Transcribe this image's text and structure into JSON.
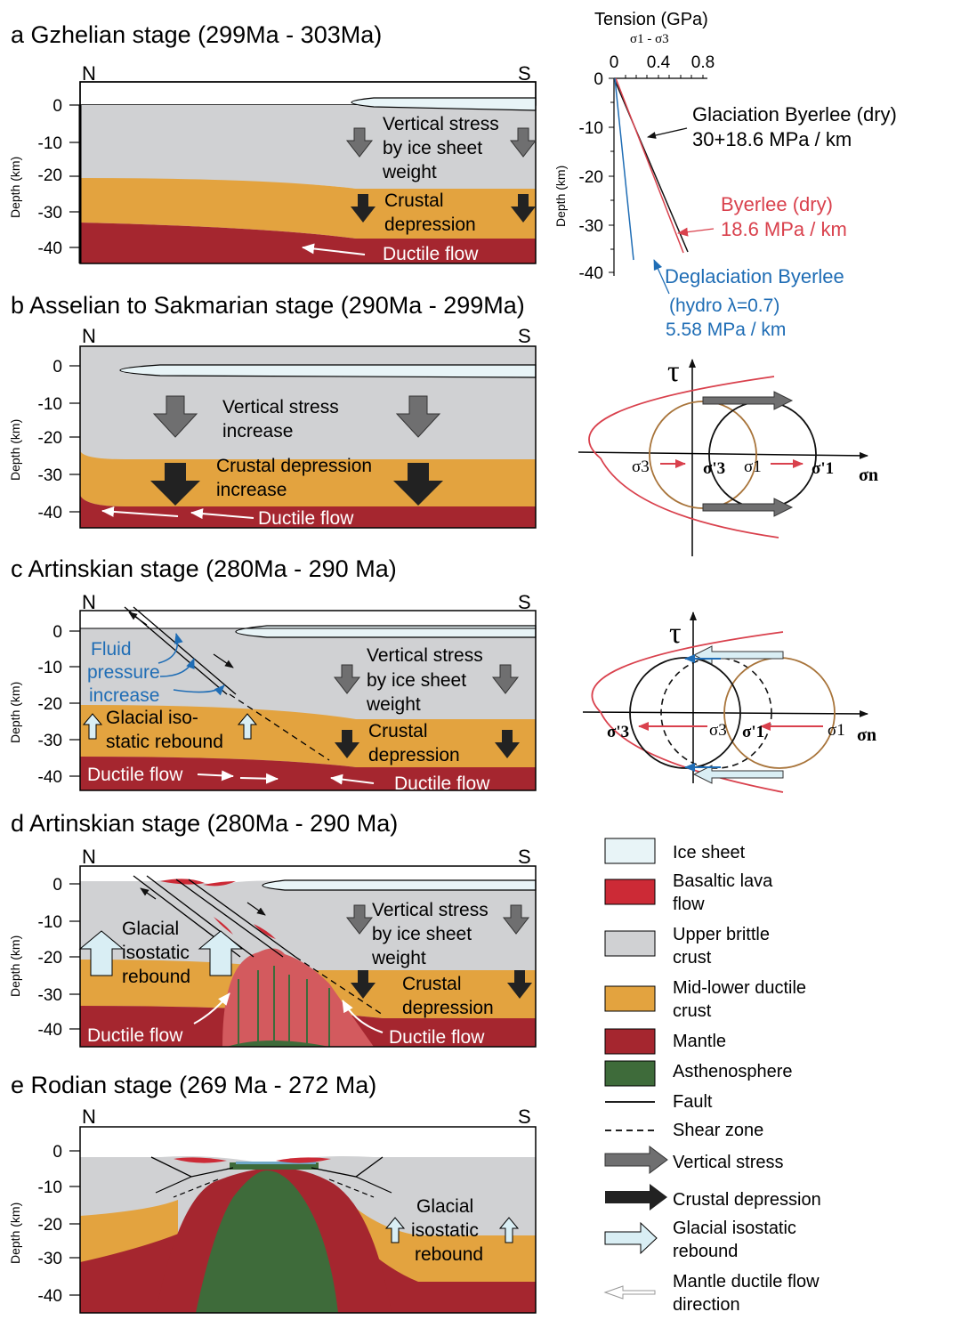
{
  "colors": {
    "ice": "#e8f4f7",
    "crust": "#d0d1d3",
    "ductile": "#e3a33f",
    "mantle": "#a5262f",
    "asthenosphere": "#3e6b3a",
    "lava": "#cc2a36",
    "red_line": "#d9414d",
    "blue_line": "#1f6db5",
    "brown_circle": "#a8743a",
    "stress_arrow": "#6f6f70",
    "depression_arrow": "#222222",
    "rebound_arrow": "#d9eef4"
  },
  "common": {
    "north": "N",
    "south": "S",
    "depth_axis": "Depth (km)",
    "depth_ticks": [
      "0",
      "-10",
      "-20",
      "-30",
      "-40"
    ]
  },
  "panel_a": {
    "title": "a Gzhelian stage (299Ma - 303Ma)",
    "stress_label": [
      "Vertical stress",
      "by ice sheet",
      "weight"
    ],
    "depression_label": [
      "Crustal",
      "depression"
    ],
    "flow_label": "Ductile flow"
  },
  "panel_b": {
    "title": "b Asselian to Sakmarian stage (290Ma - 299Ma)",
    "stress_label": [
      "Vertical stress",
      "increase"
    ],
    "depression_label": [
      "Crustal depression",
      "increase"
    ],
    "flow_label": "Ductile flow"
  },
  "panel_c": {
    "title": "c Artinskian stage (280Ma - 290 Ma)",
    "fluid_label": [
      "Fluid",
      "pressure",
      "increase"
    ],
    "rebound_label": [
      "Glacial iso-",
      "static rebound"
    ],
    "stress_label": [
      "Vertical stress",
      "by ice sheet",
      "weight"
    ],
    "depression_label": [
      "Crustal",
      "depression"
    ],
    "flow_left": "Ductile flow",
    "flow_right": "Ductile flow"
  },
  "panel_d": {
    "title": "d Artinskian stage (280Ma - 290 Ma)",
    "rebound_label": [
      "Glacial",
      "isostatic",
      "rebound"
    ],
    "stress_label": [
      "Vertical stress",
      "by ice sheet",
      "weight"
    ],
    "depression_label": [
      "Crustal",
      "depression"
    ],
    "flow_left": "Ductile flow",
    "flow_right": "Ductile flow"
  },
  "panel_e": {
    "title": "e Rodian stage (269 Ma - 272 Ma)",
    "rebound_label": [
      "Glacial",
      "isostatic",
      "rebound"
    ]
  },
  "strength_chart": {
    "title": "Tension (GPa)",
    "sigma_label": "σ1 - σ3",
    "x_ticks": [
      "0",
      "0.4",
      "0.8"
    ],
    "y_ticks": [
      "0",
      "-10",
      "-20",
      "-30",
      "-40"
    ],
    "ylabel": "Depth (km)",
    "glaciation": [
      "Glaciation Byerlee (dry)",
      "30+18.6 MPa / km"
    ],
    "byerlee": [
      "Byerlee (dry)",
      "18.6 MPa / km"
    ],
    "deglaciation": [
      "Deglaciation Byerlee",
      "(hydro λ=0.7)",
      "5.58 MPa / km"
    ]
  },
  "mohr_1": {
    "tau": "τ",
    "sigma_n": "σn",
    "labels": [
      "σ3",
      "σ'3",
      "σ1",
      "σ'1"
    ]
  },
  "mohr_2": {
    "tau": "τ",
    "sigma_n": "σn",
    "labels": [
      "σ'3",
      "σ3",
      "σ'1",
      "σ1"
    ]
  },
  "legend": [
    [
      "Ice sheet"
    ],
    [
      "Basaltic lava",
      "flow"
    ],
    [
      "Upper brittle",
      "crust"
    ],
    [
      "Mid-lower ductile",
      "crust"
    ],
    [
      "Mantle"
    ],
    [
      "Asthenosphere"
    ],
    [
      "Fault"
    ],
    [
      "Shear zone"
    ],
    [
      "Vertical stress"
    ],
    [
      "Crustal depression"
    ],
    [
      "Glacial isostatic",
      "rebound"
    ],
    [
      "Mantle ductile flow",
      "direction"
    ]
  ]
}
